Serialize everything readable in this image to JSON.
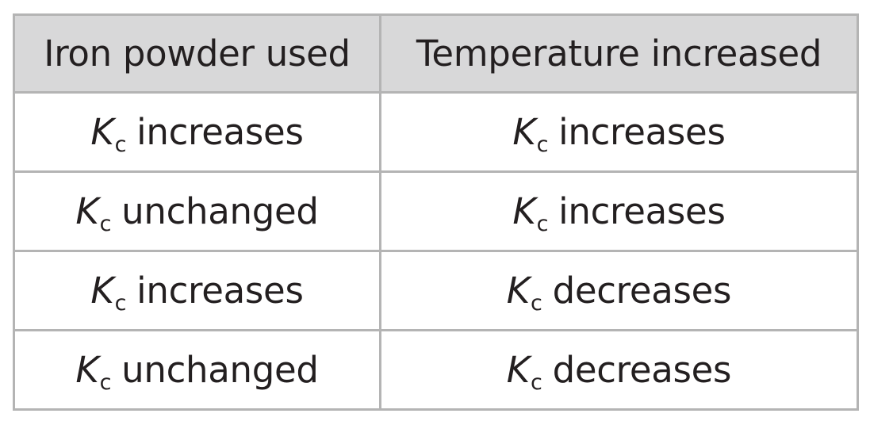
{
  "table": {
    "headers": [
      "Iron powder used",
      "Temperature increased"
    ],
    "rows": [
      [
        {
          "symbol": "K",
          "subscript": "c",
          "text": "increases"
        },
        {
          "symbol": "K",
          "subscript": "c",
          "text": "increases"
        }
      ],
      [
        {
          "symbol": "K",
          "subscript": "c",
          "text": "unchanged"
        },
        {
          "symbol": "K",
          "subscript": "c",
          "text": "increases"
        }
      ],
      [
        {
          "symbol": "K",
          "subscript": "c",
          "text": "increases"
        },
        {
          "symbol": "K",
          "subscript": "c",
          "text": "decreases"
        }
      ],
      [
        {
          "symbol": "K",
          "subscript": "c",
          "text": "unchanged"
        },
        {
          "symbol": "K",
          "subscript": "c",
          "text": "decreases"
        }
      ]
    ]
  },
  "colors": {
    "header_bg": "#d8d8d9",
    "border": "#b4b4b4",
    "text": "#231f20"
  }
}
